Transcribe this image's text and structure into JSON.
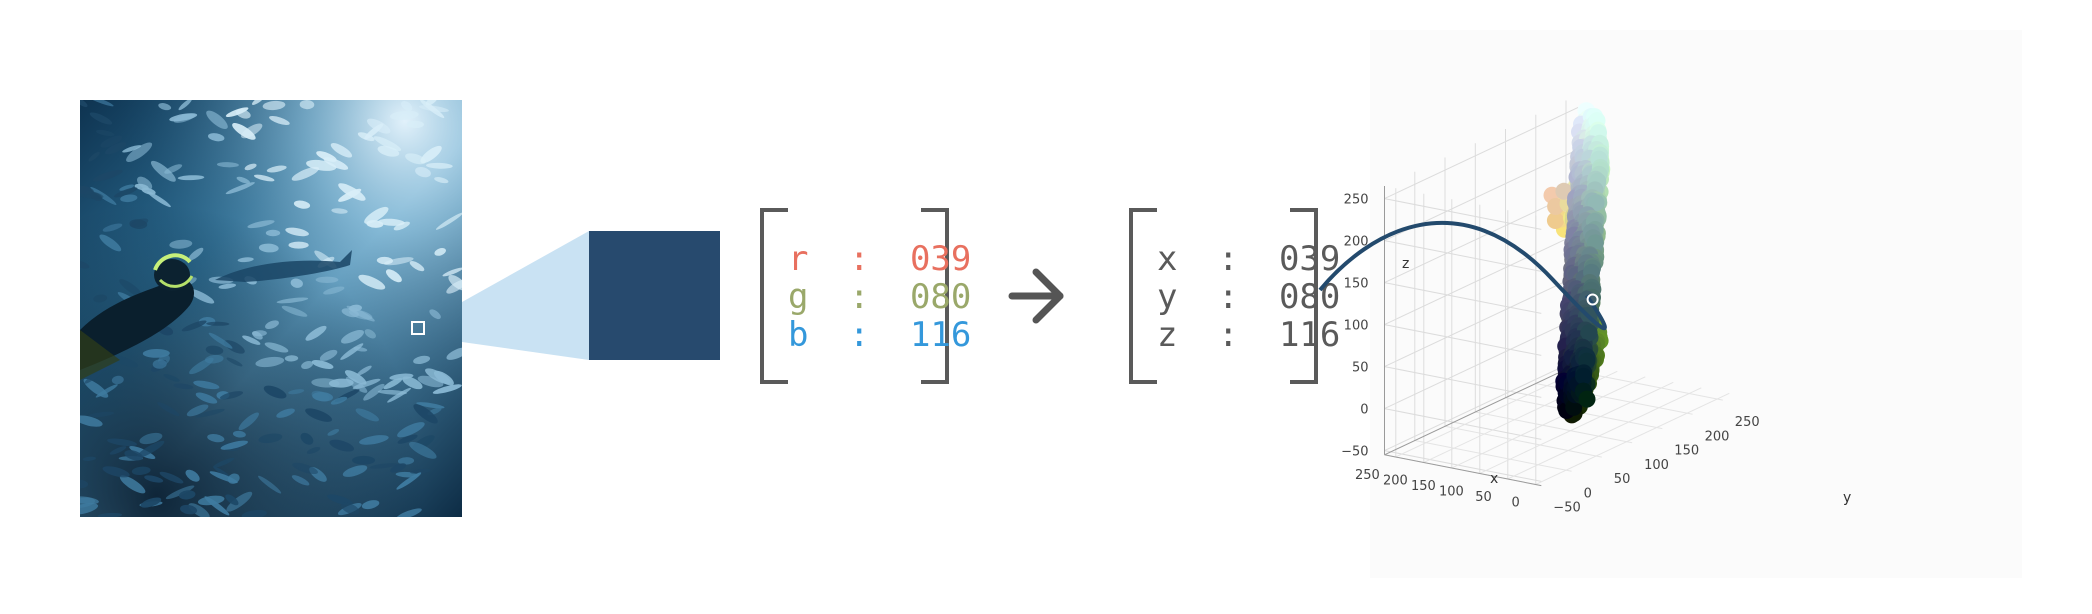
{
  "colors": {
    "r": "#e8705f",
    "g": "#9aa86a",
    "b": "#3498db",
    "neutral": "#5a5a5a",
    "swatch": "#274a6e",
    "zoom_wedge": "#c9e2f3",
    "curve": "#234a6d"
  },
  "pixel": {
    "r_label": "r",
    "g_label": "g",
    "b_label": "b",
    "r_value": "039",
    "g_value": "080",
    "b_value": "116",
    "separator": ":"
  },
  "coords": {
    "x_label": "x",
    "y_label": "y",
    "z_label": "z",
    "x_value": "039",
    "y_value": "080",
    "z_value": "116",
    "separator": ":"
  },
  "icons": {
    "arrow": "arrow-right-icon"
  },
  "chart_data": {
    "type": "scatter3d",
    "axes": {
      "x": {
        "label": "x",
        "ticks": [
          "0",
          "50",
          "100",
          "150",
          "200",
          "250"
        ],
        "range": [
          0,
          255
        ]
      },
      "y": {
        "label": "y",
        "ticks": [
          "−50",
          "0",
          "50",
          "100",
          "150",
          "200",
          "250"
        ],
        "range": [
          -50,
          255
        ]
      },
      "z": {
        "label": "z",
        "ticks": [
          "−50",
          "0",
          "50",
          "100",
          "150",
          "200",
          "250"
        ],
        "range": [
          -50,
          255
        ]
      }
    },
    "highlight_point": {
      "x": 39,
      "y": 80,
      "z": 116
    },
    "grid": true
  }
}
